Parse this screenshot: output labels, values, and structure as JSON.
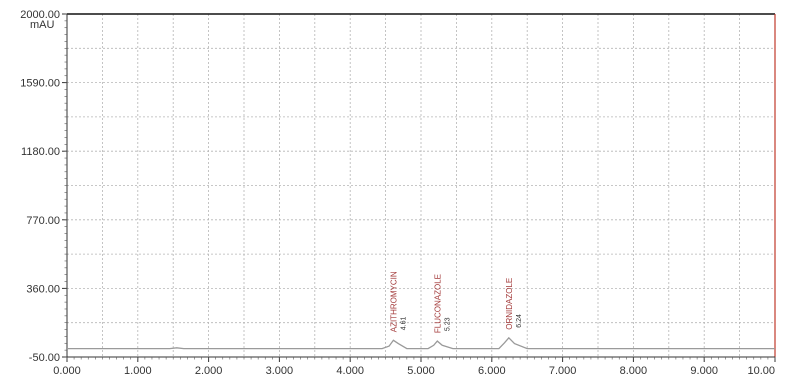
{
  "chart_data": {
    "type": "line",
    "title": "",
    "xlabel": "",
    "ylabel": "mAU",
    "xlim": [
      0,
      10
    ],
    "ylim": [
      -50,
      2000
    ],
    "x_ticks": [
      "0.000",
      "1.000",
      "2.000",
      "3.000",
      "4.000",
      "5.000",
      "6.000",
      "7.000",
      "8.000",
      "9.000",
      "10.00"
    ],
    "y_ticks": [
      "-50.00",
      "360.00",
      "770.00",
      "1180.00",
      "1590.00",
      "2000.00"
    ],
    "y_tick_values": [
      -50,
      360,
      770,
      1180,
      1590,
      2000
    ],
    "grid": true,
    "peaks": [
      {
        "name": "AZITHROMYCIN",
        "rt_label": "4.61",
        "x": 4.61,
        "height": 50
      },
      {
        "name": "FLUCONAZOLE",
        "rt_label": "5.23",
        "x": 5.23,
        "height": 45
      },
      {
        "name": "ORNIDAZOLE",
        "rt_label": "6.24",
        "x": 6.24,
        "height": 65
      }
    ],
    "series": [
      {
        "x": [
          0,
          1.45,
          1.55,
          1.65,
          4.45,
          4.55,
          4.61,
          4.68,
          4.8,
          5.1,
          5.18,
          5.23,
          5.3,
          5.45,
          6.1,
          6.18,
          6.24,
          6.32,
          6.5,
          10
        ],
        "y": [
          0,
          0,
          5,
          0,
          0,
          15,
          50,
          30,
          0,
          0,
          20,
          45,
          20,
          0,
          0,
          35,
          65,
          30,
          0,
          0
        ]
      }
    ],
    "colors": {
      "trace": "#9a9a9a",
      "frame": "#c0392b",
      "grid": "#b5b5b5"
    }
  }
}
